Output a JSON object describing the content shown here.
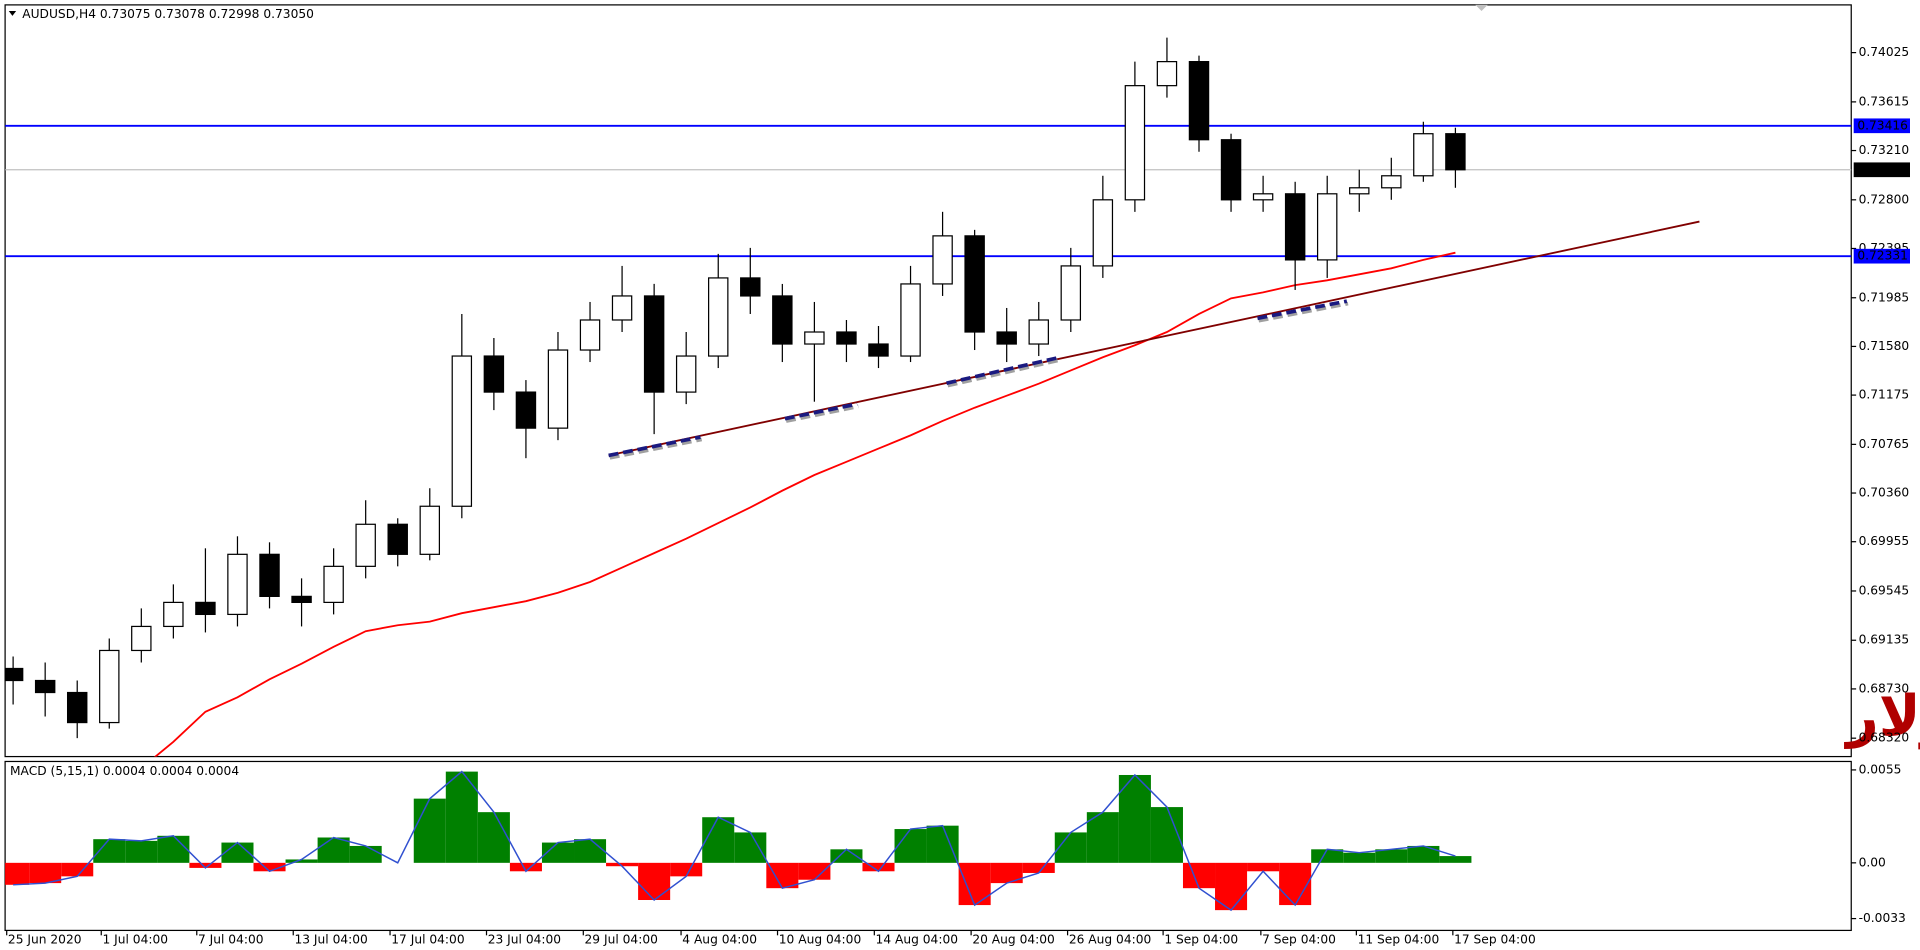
{
  "chart_data": [
    {
      "type": "candlestick",
      "title": "AUDUSD,H4  0.73075 0.73078 0.72998 0.73050",
      "watermark": "أسترالي دولار",
      "xlim": [
        -0.25,
        57.35
      ],
      "xticks": [
        {
          "value": -0.2,
          "label": "25 Jun 2020"
        },
        {
          "value": 2.75,
          "label": "1 Jul 04:00"
        },
        {
          "value": 5.73,
          "label": "7 Jul 04:00"
        },
        {
          "value": 8.74,
          "label": "13 Jul 04:00"
        },
        {
          "value": 11.76,
          "label": "17 Jul 04:00"
        },
        {
          "value": 14.77,
          "label": "23 Jul 04:00"
        },
        {
          "value": 17.79,
          "label": "29 Jul 04:00"
        },
        {
          "value": 20.84,
          "label": "4 Aug 04:00"
        },
        {
          "value": 23.85,
          "label": "10 Aug 04:00"
        },
        {
          "value": 26.87,
          "label": "14 Aug 04:00"
        },
        {
          "value": 29.89,
          "label": "20 Aug 04:00"
        },
        {
          "value": 32.9,
          "label": "26 Aug 04:00"
        },
        {
          "value": 35.88,
          "label": "1 Sep 04:00"
        },
        {
          "value": 38.93,
          "label": "7 Sep 04:00"
        },
        {
          "value": 41.91,
          "label": "11 Sep 04:00"
        },
        {
          "value": 44.92,
          "label": "17 Sep 04:00"
        }
      ],
      "ylim": [
        0.68167,
        0.74422
      ],
      "yticks": [
        0.74025,
        0.73615,
        {
          "value": 0.7321,
          "label": "0.73210"
        },
        {
          "value": 0.728,
          "label": "0.72800"
        },
        0.72395,
        0.71985,
        {
          "value": 0.7158,
          "label": "0.71580"
        },
        0.71175,
        0.70765,
        {
          "value": 0.7036,
          "label": "0.70360"
        },
        0.69955,
        0.69545,
        0.69135,
        {
          "value": 0.6873,
          "label": "0.68730"
        },
        {
          "value": 0.6832,
          "label": "0.68320"
        }
      ],
      "up_color": "#ffffff",
      "down_color": "#000000",
      "open": [
        0.689,
        0.688,
        0.687,
        0.6845,
        0.6905,
        0.6925,
        0.6945,
        0.6935,
        0.6985,
        0.695,
        0.6945,
        0.6975,
        0.701,
        0.6985,
        0.7025,
        0.715,
        0.712,
        0.709,
        0.7155,
        0.718,
        0.72,
        0.712,
        0.715,
        0.7215,
        0.72,
        0.716,
        0.717,
        0.716,
        0.715,
        0.721,
        0.725,
        0.717,
        0.716,
        0.718,
        0.7225,
        0.728,
        0.7375,
        0.7395,
        0.733,
        0.728,
        0.7285,
        0.723,
        0.7285,
        0.729,
        0.73,
        0.7335
      ],
      "high": [
        0.69,
        0.6895,
        0.688,
        0.6915,
        0.694,
        0.696,
        0.699,
        0.7,
        0.6995,
        0.6965,
        0.699,
        0.703,
        0.7015,
        0.704,
        0.7185,
        0.7165,
        0.713,
        0.717,
        0.7195,
        0.7225,
        0.721,
        0.717,
        0.7235,
        0.724,
        0.721,
        0.7195,
        0.718,
        0.7175,
        0.7225,
        0.727,
        0.7255,
        0.719,
        0.7195,
        0.724,
        0.73,
        0.7395,
        0.7415,
        0.74,
        0.7335,
        0.73,
        0.7295,
        0.73,
        0.7305,
        0.7315,
        0.7345,
        0.734
      ],
      "low": [
        0.686,
        0.685,
        0.6832,
        0.684,
        0.6895,
        0.6915,
        0.692,
        0.6925,
        0.694,
        0.6925,
        0.6935,
        0.6965,
        0.6975,
        0.698,
        0.7015,
        0.7105,
        0.7065,
        0.708,
        0.7145,
        0.717,
        0.7085,
        0.711,
        0.714,
        0.7185,
        0.7145,
        0.7112,
        0.7145,
        0.714,
        0.7145,
        0.72,
        0.7155,
        0.7145,
        0.715,
        0.717,
        0.7215,
        0.727,
        0.7365,
        0.732,
        0.727,
        0.727,
        0.7205,
        0.7215,
        0.727,
        0.728,
        0.7295,
        0.729
      ],
      "close": [
        0.688,
        0.687,
        0.6845,
        0.6905,
        0.6925,
        0.6945,
        0.6935,
        0.6985,
        0.695,
        0.6945,
        0.6975,
        0.701,
        0.6985,
        0.7025,
        0.715,
        0.712,
        0.709,
        0.7155,
        0.718,
        0.72,
        0.712,
        0.715,
        0.7215,
        0.72,
        0.716,
        0.717,
        0.716,
        0.715,
        0.721,
        0.725,
        0.717,
        0.716,
        0.718,
        0.7225,
        0.728,
        0.7375,
        0.7395,
        0.733,
        0.728,
        0.7285,
        0.723,
        0.7285,
        0.729,
        0.73,
        0.7335,
        0.7305
      ],
      "ma": {
        "color": "#ff0000",
        "values": [
          null,
          null,
          null,
          null,
          0.6807,
          0.6829,
          0.6854,
          0.6866,
          0.6881,
          0.6894,
          0.6908,
          0.6921,
          0.6926,
          0.6929,
          0.6936,
          0.6941,
          0.6946,
          0.6953,
          0.6962,
          0.6974,
          0.6986,
          0.6998,
          0.7011,
          0.7024,
          0.7038,
          0.7051,
          0.7062,
          0.7073,
          0.7084,
          0.7096,
          0.7107,
          0.7117,
          0.7127,
          0.7138,
          0.7149,
          0.7159,
          0.717,
          0.7185,
          0.7198,
          0.7203,
          0.7209,
          0.7213,
          0.7218,
          0.7223,
          0.723,
          0.7236
        ]
      },
      "hlines": [
        {
          "value": 0.73416,
          "color": "#0000ff"
        },
        {
          "value": 0.72331,
          "color": "#0000ff"
        }
      ],
      "last_price": {
        "value": 0.7305,
        "label": "0.73050",
        "color": "#c0c0c0"
      }
    },
    {
      "type": "bar",
      "title": "MACD (5,15,1) 0.0004 0.0004 0.0004",
      "pos_color": "#008000",
      "neg_color": "#ff0000",
      "line_color": "#3050d0",
      "ylim": [
        -0.004,
        0.006
      ],
      "yticks": [
        0.0055,
        {
          "value": 0,
          "label": "0.00"
        },
        -0.0033
      ],
      "values": [
        -0.0013,
        -0.0012,
        -0.0008,
        0.0014,
        0.0013,
        0.0016,
        -0.0003,
        0.0012,
        -0.0005,
        0.0002,
        0.0015,
        0.001,
        0.0,
        0.0038,
        0.0054,
        0.003,
        -0.0005,
        0.0012,
        0.0014,
        -0.0002,
        -0.0022,
        -0.0008,
        0.0027,
        0.0018,
        -0.0015,
        -0.001,
        0.0008,
        -0.0005,
        0.002,
        0.0022,
        -0.0025,
        -0.0012,
        -0.0006,
        0.0018,
        0.003,
        0.0052,
        0.0033,
        -0.0015,
        -0.0028,
        -0.0005,
        -0.0025,
        0.0008,
        0.0006,
        0.0008,
        0.001,
        0.0004
      ]
    }
  ]
}
